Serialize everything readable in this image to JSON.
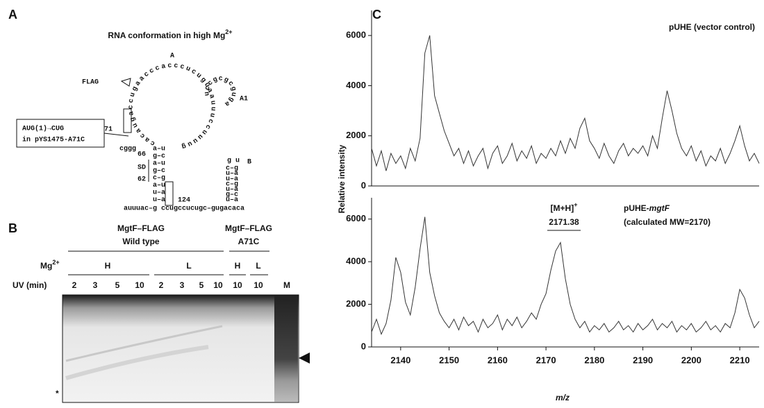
{
  "panel_a": {
    "label": "A",
    "title": "RNA conformation in high Mg",
    "title_sup": "2+",
    "loop_label": "A",
    "flag": "FLAG",
    "hairpin_a1": "A1",
    "hairpin_b": "B",
    "pos_71": "71",
    "pos_66": "66",
    "sd": "SD",
    "pos_62": "62",
    "pos_124": "124",
    "mutation": [
      "AUG(1)→CUG",
      "in pYS1475-A71C"
    ],
    "loop_seq": "cacaugaccugaacccacccucuguaauuuccuuuug",
    "a1_seq": "uccgcgcgugag",
    "stem1_top": "cggg",
    "stem1": [
      "a–u",
      "g–c",
      "a–u",
      "g–c",
      "c–g",
      "a–u",
      "u–a",
      "u–a"
    ],
    "b_loop": "g u",
    "stem_b": [
      "c–g",
      "u–a",
      "u–a",
      "c–g",
      "u–a",
      "g–c",
      "u–a"
    ],
    "tail": "auuuac–g ccugccucugc–gugacaca"
  },
  "panel_b": {
    "label": "B",
    "group_wt": [
      "MgtF–FLAG",
      "Wild type"
    ],
    "group_mut": [
      "MgtF–FLAG",
      "A71C"
    ],
    "mg": "Mg",
    "mg_sup": "2+",
    "conditions": [
      "H",
      "L",
      "H",
      "L"
    ],
    "uv": "UV (min)",
    "lanes": [
      "2",
      "3",
      "5",
      "10",
      "2",
      "3",
      "5",
      "10",
      "10",
      "10",
      "M"
    ],
    "star": "*"
  },
  "panel_c": {
    "label": "C",
    "y_label": "Relative intensity",
    "x_label": "m/z"
  },
  "chart_data": [
    {
      "type": "line",
      "annotation": "pUHE (vector control)",
      "color": "#333333",
      "x": [
        2134,
        2135,
        2136,
        2137,
        2138,
        2139,
        2140,
        2141,
        2142,
        2143,
        2144,
        2145,
        2146,
        2147,
        2148,
        2149,
        2150,
        2151,
        2152,
        2153,
        2154,
        2155,
        2156,
        2157,
        2158,
        2159,
        2160,
        2161,
        2162,
        2163,
        2164,
        2165,
        2166,
        2167,
        2168,
        2169,
        2170,
        2171,
        2172,
        2173,
        2174,
        2175,
        2176,
        2177,
        2178,
        2179,
        2180,
        2181,
        2182,
        2183,
        2184,
        2185,
        2186,
        2187,
        2188,
        2189,
        2190,
        2191,
        2192,
        2193,
        2194,
        2195,
        2196,
        2197,
        2198,
        2199,
        2200,
        2201,
        2202,
        2203,
        2204,
        2205,
        2206,
        2207,
        2208,
        2209,
        2210,
        2211,
        2212,
        2213,
        2214
      ],
      "values": [
        1500,
        800,
        1400,
        600,
        1300,
        900,
        1200,
        700,
        1500,
        1000,
        1900,
        5300,
        6000,
        3600,
        2900,
        2200,
        1700,
        1200,
        1500,
        900,
        1400,
        800,
        1200,
        1500,
        700,
        1300,
        1600,
        900,
        1200,
        1700,
        1000,
        1400,
        1100,
        1600,
        900,
        1300,
        1100,
        1500,
        1200,
        1800,
        1300,
        1900,
        1500,
        2300,
        2700,
        1800,
        1500,
        1100,
        1700,
        1200,
        900,
        1400,
        1700,
        1200,
        1500,
        1300,
        1600,
        1200,
        2000,
        1500,
        2700,
        3800,
        3000,
        2100,
        1500,
        1200,
        1600,
        1000,
        1400,
        800,
        1200,
        1000,
        1500,
        900,
        1300,
        1800,
        2400,
        1600,
        1000,
        1300,
        900
      ],
      "xlim": [
        2134,
        2214
      ],
      "ylim": [
        0,
        7000
      ],
      "yticks": [
        0,
        2000,
        4000,
        6000
      ]
    },
    {
      "type": "line",
      "annotation_parts": [
        "pUHE-",
        "mgtF"
      ],
      "annotation_sub": "(calculated MW=2170)",
      "peak_label": "[M+H]",
      "peak_label_sup": "+",
      "peak_value": "2171.38",
      "color": "#333333",
      "x": [
        2134,
        2135,
        2136,
        2137,
        2138,
        2139,
        2140,
        2141,
        2142,
        2143,
        2144,
        2145,
        2146,
        2147,
        2148,
        2149,
        2150,
        2151,
        2152,
        2153,
        2154,
        2155,
        2156,
        2157,
        2158,
        2159,
        2160,
        2161,
        2162,
        2163,
        2164,
        2165,
        2166,
        2167,
        2168,
        2169,
        2170,
        2171,
        2172,
        2173,
        2174,
        2175,
        2176,
        2177,
        2178,
        2179,
        2180,
        2181,
        2182,
        2183,
        2184,
        2185,
        2186,
        2187,
        2188,
        2189,
        2190,
        2191,
        2192,
        2193,
        2194,
        2195,
        2196,
        2197,
        2198,
        2199,
        2200,
        2201,
        2202,
        2203,
        2204,
        2205,
        2206,
        2207,
        2208,
        2209,
        2210,
        2211,
        2212,
        2213,
        2214
      ],
      "values": [
        700,
        1300,
        600,
        1100,
        2200,
        4200,
        3500,
        2100,
        1500,
        2800,
        4600,
        6100,
        3500,
        2400,
        1600,
        1200,
        900,
        1300,
        800,
        1400,
        1000,
        1200,
        700,
        1300,
        900,
        1100,
        1500,
        800,
        1300,
        1000,
        1400,
        900,
        1200,
        1600,
        1300,
        2000,
        2500,
        3600,
        4500,
        4900,
        3200,
        2000,
        1300,
        900,
        1200,
        700,
        1000,
        800,
        1100,
        700,
        900,
        1200,
        800,
        1000,
        700,
        1100,
        800,
        1000,
        1300,
        800,
        1100,
        900,
        1200,
        700,
        1000,
        800,
        1100,
        700,
        900,
        1200,
        800,
        1000,
        700,
        1100,
        900,
        1600,
        2700,
        2300,
        1500,
        900,
        1200
      ],
      "xlim": [
        2134,
        2214
      ],
      "ylim": [
        0,
        7000
      ],
      "yticks": [
        0,
        2000,
        4000,
        6000
      ],
      "xticks": [
        2140,
        2150,
        2160,
        2170,
        2180,
        2190,
        2200,
        2210
      ]
    }
  ]
}
